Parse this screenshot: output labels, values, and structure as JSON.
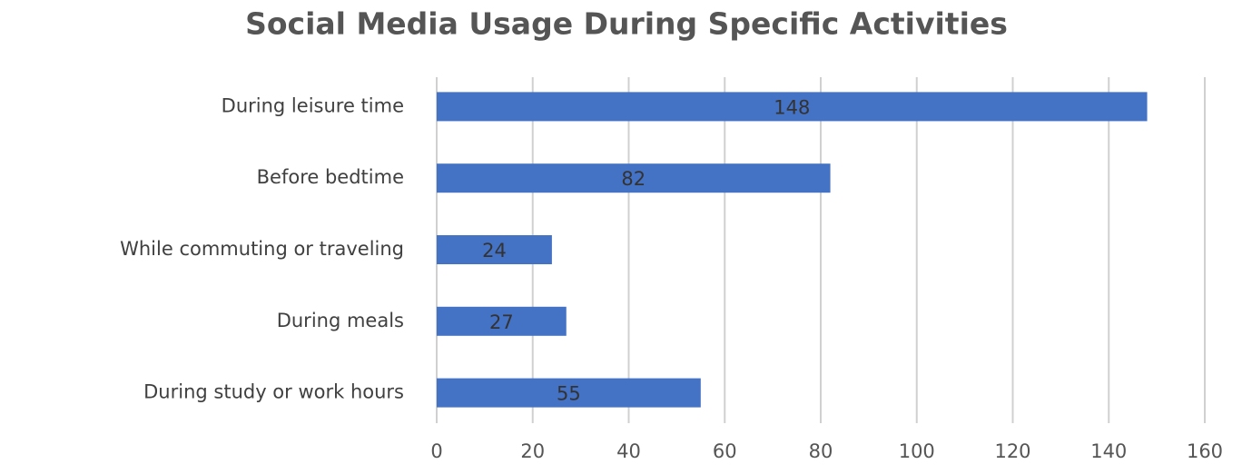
{
  "chart_data": {
    "type": "bar",
    "orientation": "horizontal",
    "title": "Social Media Usage During Specific Activities",
    "categories": [
      "During leisure time",
      "Before bedtime",
      "While commuting or traveling",
      "During meals",
      "During study or work hours"
    ],
    "values": [
      148,
      82,
      24,
      27,
      55
    ],
    "color": "#4472c4",
    "xlim": [
      0,
      160
    ],
    "xticks": [
      0,
      20,
      40,
      60,
      80,
      100,
      120,
      140,
      160
    ],
    "grid": true,
    "data_labels": true
  }
}
